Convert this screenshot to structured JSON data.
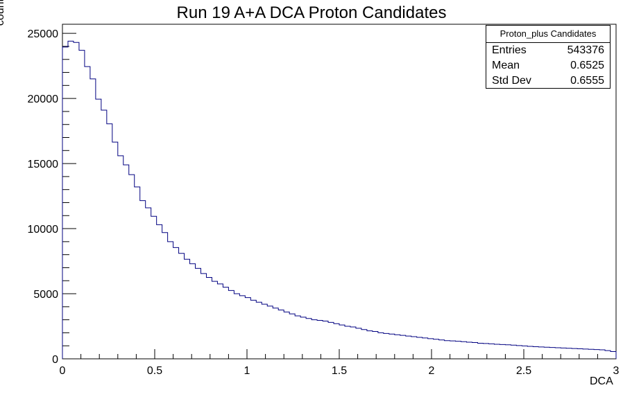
{
  "chart_data": {
    "type": "histogram",
    "title": "Run 19 A+A DCA Proton Candidates",
    "xlabel": "DCA",
    "ylabel": "counts",
    "xlim": [
      0,
      3
    ],
    "ylim": [
      0,
      25700
    ],
    "bin_width": 0.03,
    "x_ticks": [
      "0",
      "0.5",
      "1",
      "1.5",
      "2",
      "2.5",
      "3"
    ],
    "y_ticks": [
      "0",
      "5000",
      "10000",
      "15000",
      "20000",
      "25000"
    ],
    "values": [
      23950,
      24400,
      24300,
      23700,
      22450,
      21500,
      19950,
      19100,
      18050,
      16650,
      15600,
      14900,
      14150,
      13200,
      12150,
      11600,
      10950,
      10300,
      9700,
      9000,
      8550,
      8100,
      7650,
      7300,
      6950,
      6550,
      6250,
      5950,
      5750,
      5500,
      5250,
      5000,
      4850,
      4700,
      4500,
      4350,
      4200,
      4050,
      3900,
      3750,
      3600,
      3450,
      3300,
      3200,
      3100,
      3000,
      2950,
      2900,
      2800,
      2700,
      2600,
      2500,
      2450,
      2350,
      2250,
      2150,
      2100,
      2000,
      1950,
      1900,
      1850,
      1800,
      1750,
      1700,
      1650,
      1600,
      1550,
      1500,
      1450,
      1400,
      1380,
      1350,
      1320,
      1280,
      1250,
      1200,
      1180,
      1150,
      1120,
      1100,
      1080,
      1050,
      1020,
      990,
      960,
      930,
      910,
      890,
      870,
      850,
      830,
      810,
      790,
      770,
      750,
      730,
      710,
      690,
      630,
      560
    ]
  },
  "stats_box": {
    "name": "Proton_plus Candidates",
    "rows": [
      {
        "label": "Entries",
        "value": "543376"
      },
      {
        "label": "Mean",
        "value": "0.6525"
      },
      {
        "label": "Std Dev",
        "value": "0.6555"
      }
    ]
  },
  "colors": {
    "histogram_line": "#000080",
    "axis": "#000000",
    "background": "#ffffff"
  }
}
